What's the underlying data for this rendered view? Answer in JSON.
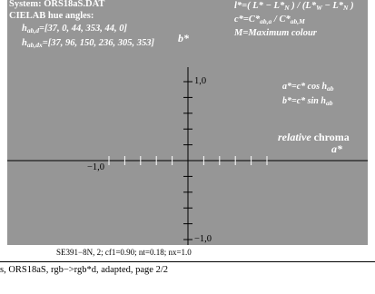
{
  "header": {
    "system": "System: ORS18aS.DAT",
    "cielab": "CIELAB hue angles:",
    "hab_d": "hab,d=[37, 0, 44, 353, 44, 0]",
    "hab_dx": "hab,dx=[37, 96, 150, 236, 305, 353]",
    "bstar": "b*"
  },
  "formulas": {
    "lstar": "l*=( L* − L*N ) / (L*W − L*N )",
    "cstar": "c*=C*ab,a / C*ab,M",
    "m": "M=Maximum colour",
    "astar_cos": "a*=c* cos hab",
    "bstar_sin": "b*=c* sin hab"
  },
  "legend": {
    "relative": "relative",
    "chroma": "chroma",
    "astar": "a*"
  },
  "axes": {
    "y_pos": "1,0",
    "y_neg": "−1,0",
    "x_neg": "−1,0",
    "x_range": [
      -1,
      1
    ],
    "y_range": [
      -1,
      1
    ]
  },
  "footer": {
    "params": "SE391−8N, 2; cf1=0.90; nt=0.18; nx=1.0",
    "caption": "s, ORS18aS, rgb−>rgb*d, adapted, page 2/2"
  },
  "colors": {
    "panel": "#969696",
    "axis": "#000000",
    "tick": "#ffffff",
    "text": "#ffffff"
  }
}
